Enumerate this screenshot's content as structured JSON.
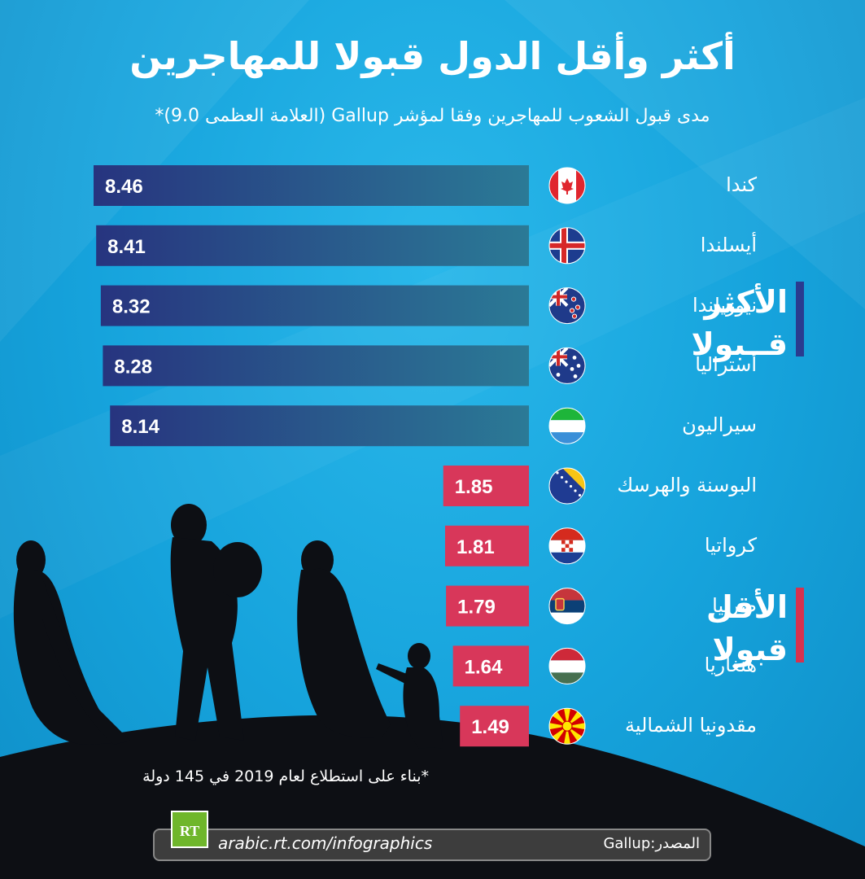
{
  "title": "أكثر وأقل الدول قبولا للمهاجرين",
  "subtitle": "مدى قبول الشعوب للمهاجرين وفقا لمؤشر Gallup (العلامة العظمى 9.0)*",
  "groups": {
    "most": {
      "line1": "الأكثر",
      "line2": "قــبولا",
      "color": "#2a3b8f"
    },
    "least": {
      "line1": "الأقل",
      "line2": "قبولا",
      "color": "#d6324f"
    }
  },
  "chart_data": {
    "type": "bar",
    "orientation": "horizontal",
    "xlim": [
      0,
      9.0
    ],
    "categories": [
      "كندا",
      "أيسلندا",
      "نيوزيلندا",
      "أستراليا",
      "سيراليون",
      "البوسنة والهرسك",
      "كرواتيا",
      "صربيا",
      "هنغاريا",
      "مقدونيا الشمالية"
    ],
    "values": [
      8.46,
      8.41,
      8.32,
      8.28,
      8.14,
      1.85,
      1.81,
      1.79,
      1.64,
      1.49
    ],
    "value_labels": [
      "8.46",
      "8.41",
      "8.32",
      "8.28",
      "8.14",
      "1.85",
      "1.81",
      "1.79",
      "1.64",
      "1.49"
    ],
    "group": [
      "most",
      "most",
      "most",
      "most",
      "most",
      "least",
      "least",
      "least",
      "least",
      "least"
    ],
    "flag_icons": [
      "canada-flag-icon",
      "iceland-flag-icon",
      "new-zealand-flag-icon",
      "australia-flag-icon",
      "sierra-leone-flag-icon",
      "bosnia-flag-icon",
      "croatia-flag-icon",
      "serbia-flag-icon",
      "hungary-flag-icon",
      "north-macedonia-flag-icon"
    ],
    "colors": {
      "most_start": "#27347f",
      "most_end": "#2b7a96",
      "least": "#d8375a"
    }
  },
  "footnote": "*بناء على استطلاع لعام 2019 في 145 دولة",
  "footer": {
    "logo": "RT",
    "url": "arabic.rt.com/infographics",
    "source": "المصدر:Gallup"
  }
}
